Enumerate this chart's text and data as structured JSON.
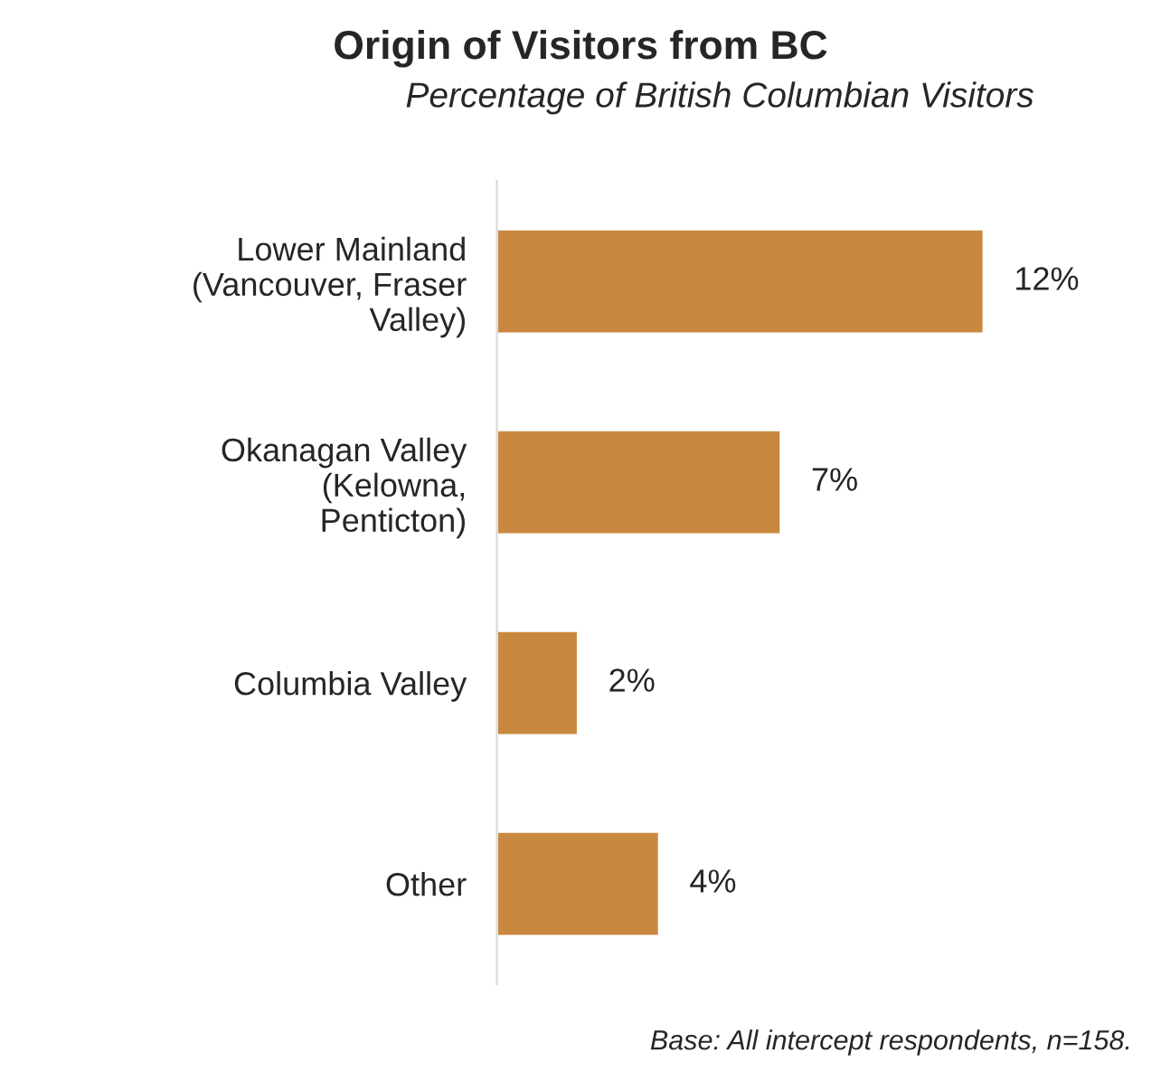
{
  "chart_data": {
    "type": "bar",
    "orientation": "horizontal",
    "title": "Origin of Visitors from BC",
    "subtitle": "Percentage of British Columbian Visitors",
    "categories": [
      "Lower Mainland\n(Vancouver, Fraser\nValley)",
      "Okanagan Valley\n(Kelowna,\nPenticton)",
      "Columbia Valley",
      "Other"
    ],
    "values": [
      12,
      7,
      2,
      4
    ],
    "color": "#c8883f",
    "value_labels": [
      "12%",
      "7%",
      "2%",
      "4%"
    ],
    "tick_labels": "y",
    "grid": false,
    "legend": false,
    "annotations": [
      "Base: All intercept respondents, n=158."
    ]
  }
}
